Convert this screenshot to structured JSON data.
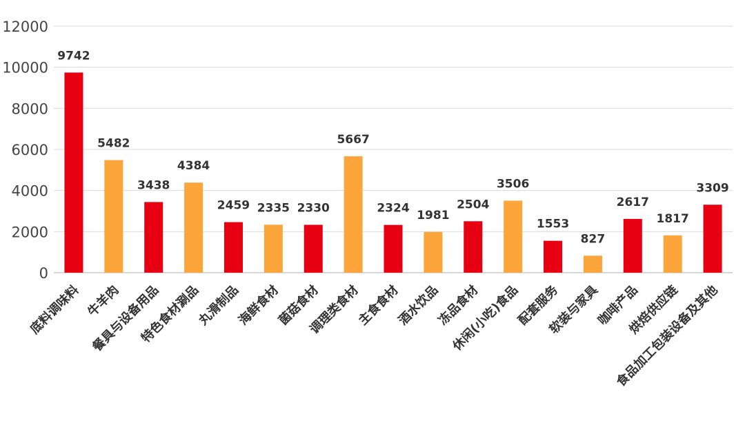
{
  "chart_data": {
    "type": "bar",
    "categories": [
      "底料调味料",
      "牛羊肉",
      "餐具与设备用品",
      "特色食材涮品",
      "丸滑制品",
      "海鲜食材",
      "菌菇食材",
      "调理类食材",
      "主食食材",
      "酒水饮品",
      "冻品食材",
      "休闲(小吃)食品",
      "配套服务",
      "软装与家具",
      "咖啡产品",
      "烘焙供应链",
      "食品加工包装设备及其他"
    ],
    "values": [
      9742,
      5482,
      3438,
      4384,
      2459,
      2335,
      2330,
      5667,
      2324,
      1981,
      2504,
      3506,
      1553,
      827,
      2617,
      1817,
      3309
    ],
    "bar_colors": [
      "#e60012",
      "#fba53b",
      "#e60012",
      "#fba53b",
      "#e60012",
      "#fba53b",
      "#e60012",
      "#fba53b",
      "#e60012",
      "#fba53b",
      "#e60012",
      "#fba53b",
      "#e60012",
      "#fba53b",
      "#e60012",
      "#fba53b",
      "#e60012"
    ],
    "ylim": [
      0,
      12000
    ],
    "yticks": [
      0,
      2000,
      4000,
      6000,
      8000,
      10000,
      12000
    ],
    "grid": true,
    "legend": "none",
    "title": "",
    "xlabel": "",
    "ylabel": ""
  }
}
